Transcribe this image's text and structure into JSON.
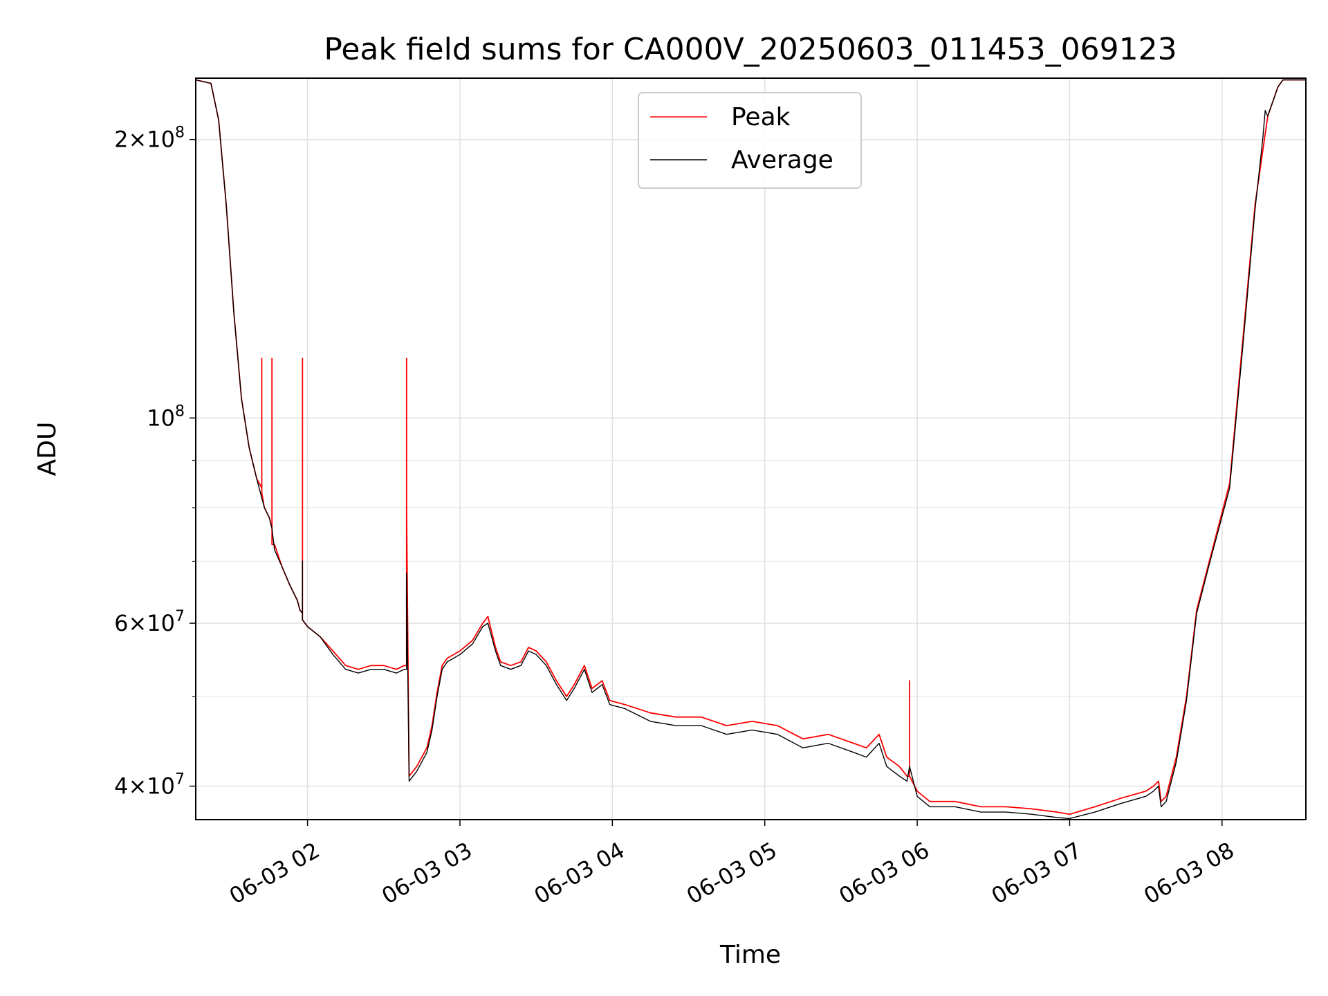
{
  "chart_data": {
    "type": "line",
    "title": "Peak field sums for CA000V_20250603_011453_069123",
    "xlabel": "Time",
    "ylabel": "ADU",
    "yscale": "log",
    "ylim": [
      36800000,
      233000000
    ],
    "xlim": [
      "06-03 01:16",
      "06-03 08:33"
    ],
    "grid": true,
    "legend_position": "upper center",
    "x_ticks": [
      "06-03 02",
      "06-03 03",
      "06-03 04",
      "06-03 05",
      "06-03 06",
      "06-03 07",
      "06-03 08"
    ],
    "x_ticks_time": [
      "02:00",
      "03:00",
      "04:00",
      "05:00",
      "06:00",
      "07:00",
      "08:00"
    ],
    "y_major_ticks": [
      {
        "value": 40000000,
        "mantissa": "4",
        "exp": "7"
      },
      {
        "value": 60000000,
        "mantissa": "6",
        "exp": "7"
      },
      {
        "value": 100000000,
        "mantissa": "",
        "exp": "8"
      },
      {
        "value": 200000000,
        "mantissa": "2",
        "exp": "8"
      }
    ],
    "y_minor_ticks": [
      50000000,
      70000000,
      80000000,
      90000000
    ],
    "series": [
      {
        "name": "Peak",
        "color": "#ff0000",
        "points": [
          [
            "01:16",
            232000000
          ],
          [
            "01:22",
            230000000
          ],
          [
            "01:25",
            210000000
          ],
          [
            "01:28",
            170000000
          ],
          [
            "01:31",
            130000000
          ],
          [
            "01:34",
            105000000
          ],
          [
            "01:37",
            93000000
          ],
          [
            "01:40",
            86000000
          ],
          [
            "01:42",
            84000000
          ],
          [
            "01:42",
            116000000
          ],
          [
            "01:42",
            83000000
          ],
          [
            "01:43",
            80000000
          ],
          [
            "01:45",
            78000000
          ],
          [
            "01:46",
            76000000
          ],
          [
            "01:46",
            116000000
          ],
          [
            "01:46",
            73000000
          ],
          [
            "01:47",
            73000000
          ],
          [
            "01:50",
            69000000
          ],
          [
            "01:53",
            66000000
          ],
          [
            "01:56",
            63500000
          ],
          [
            "01:57",
            62000000
          ],
          [
            "01:58",
            61500000
          ],
          [
            "01:58",
            116000000
          ],
          [
            "01:58",
            116000000
          ],
          [
            "01:58",
            60500000
          ],
          [
            "02:00",
            59500000
          ],
          [
            "02:05",
            58000000
          ],
          [
            "02:10",
            56000000
          ],
          [
            "02:15",
            54000000
          ],
          [
            "02:20",
            53500000
          ],
          [
            "02:25",
            54000000
          ],
          [
            "02:30",
            54000000
          ],
          [
            "02:35",
            53500000
          ],
          [
            "02:38",
            54000000
          ],
          [
            "02:39",
            54000000
          ],
          [
            "02:39",
            116000000
          ],
          [
            "02:39",
            80000000
          ],
          [
            "02:40",
            41000000
          ],
          [
            "02:43",
            42000000
          ],
          [
            "02:47",
            44000000
          ],
          [
            "02:49",
            46500000
          ],
          [
            "02:51",
            50500000
          ],
          [
            "02:53",
            54000000
          ],
          [
            "02:55",
            55000000
          ],
          [
            "03:00",
            56000000
          ],
          [
            "03:05",
            57500000
          ],
          [
            "03:09",
            60000000
          ],
          [
            "03:11",
            61000000
          ],
          [
            "03:14",
            56500000
          ],
          [
            "03:16",
            54500000
          ],
          [
            "03:20",
            54000000
          ],
          [
            "03:24",
            54500000
          ],
          [
            "03:27",
            56500000
          ],
          [
            "03:30",
            56000000
          ],
          [
            "03:34",
            54500000
          ],
          [
            "03:38",
            52000000
          ],
          [
            "03:42",
            50000000
          ],
          [
            "03:45",
            51500000
          ],
          [
            "03:49",
            54000000
          ],
          [
            "03:52",
            51000000
          ],
          [
            "03:56",
            52000000
          ],
          [
            "03:59",
            49500000
          ],
          [
            "04:05",
            49000000
          ],
          [
            "04:15",
            48000000
          ],
          [
            "04:25",
            47500000
          ],
          [
            "04:35",
            47500000
          ],
          [
            "04:45",
            46500000
          ],
          [
            "04:55",
            47000000
          ],
          [
            "05:05",
            46500000
          ],
          [
            "05:15",
            45000000
          ],
          [
            "05:25",
            45500000
          ],
          [
            "05:35",
            44500000
          ],
          [
            "05:40",
            44000000
          ],
          [
            "05:45",
            45500000
          ],
          [
            "05:48",
            43000000
          ],
          [
            "05:53",
            42000000
          ],
          [
            "05:56",
            41000000
          ],
          [
            "05:57",
            41000000
          ],
          [
            "05:57",
            52000000
          ],
          [
            "05:57",
            41000000
          ],
          [
            "06:00",
            39500000
          ],
          [
            "06:05",
            38500000
          ],
          [
            "06:15",
            38500000
          ],
          [
            "06:25",
            38000000
          ],
          [
            "06:35",
            38000000
          ],
          [
            "06:45",
            37800000
          ],
          [
            "06:55",
            37500000
          ],
          [
            "07:00",
            37300000
          ],
          [
            "07:10",
            38000000
          ],
          [
            "07:20",
            38800000
          ],
          [
            "07:30",
            39500000
          ],
          [
            "07:33",
            40000000
          ],
          [
            "07:35",
            40500000
          ],
          [
            "07:36",
            38500000
          ],
          [
            "07:38",
            39000000
          ],
          [
            "07:42",
            43000000
          ],
          [
            "07:46",
            50000000
          ],
          [
            "07:50",
            62000000
          ],
          [
            "07:55",
            70000000
          ],
          [
            "08:03",
            85000000
          ],
          [
            "08:08",
            120000000
          ],
          [
            "08:13",
            170000000
          ],
          [
            "08:18",
            212000000
          ],
          [
            "08:22",
            228000000
          ],
          [
            "08:24",
            232000000
          ],
          [
            "08:33",
            232000000
          ]
        ]
      },
      {
        "name": "Average",
        "color": "#000000",
        "points": [
          [
            "01:16",
            232000000
          ],
          [
            "01:22",
            230000000
          ],
          [
            "01:25",
            210000000
          ],
          [
            "01:28",
            170000000
          ],
          [
            "01:31",
            130000000
          ],
          [
            "01:34",
            105000000
          ],
          [
            "01:37",
            93000000
          ],
          [
            "01:40",
            86000000
          ],
          [
            "01:43",
            80000000
          ],
          [
            "01:45",
            78000000
          ],
          [
            "01:46",
            76000000
          ],
          [
            "01:47",
            72000000
          ],
          [
            "01:50",
            69000000
          ],
          [
            "01:53",
            66000000
          ],
          [
            "01:56",
            63500000
          ],
          [
            "01:57",
            62000000
          ],
          [
            "01:58",
            61500000
          ],
          [
            "01:58",
            70000000
          ],
          [
            "01:58",
            60500000
          ],
          [
            "02:00",
            59500000
          ],
          [
            "02:05",
            58000000
          ],
          [
            "02:10",
            55500000
          ],
          [
            "02:15",
            53500000
          ],
          [
            "02:20",
            53000000
          ],
          [
            "02:25",
            53500000
          ],
          [
            "02:30",
            53500000
          ],
          [
            "02:35",
            53000000
          ],
          [
            "02:38",
            53500000
          ],
          [
            "02:39",
            53500000
          ],
          [
            "02:39",
            68000000
          ],
          [
            "02:40",
            40500000
          ],
          [
            "02:43",
            41500000
          ],
          [
            "02:47",
            43500000
          ],
          [
            "02:49",
            46000000
          ],
          [
            "02:51",
            50000000
          ],
          [
            "02:53",
            53500000
          ],
          [
            "02:55",
            54500000
          ],
          [
            "03:00",
            55500000
          ],
          [
            "03:05",
            57000000
          ],
          [
            "03:09",
            59500000
          ],
          [
            "03:11",
            60000000
          ],
          [
            "03:14",
            56000000
          ],
          [
            "03:16",
            54000000
          ],
          [
            "03:20",
            53500000
          ],
          [
            "03:24",
            54000000
          ],
          [
            "03:27",
            56000000
          ],
          [
            "03:30",
            55500000
          ],
          [
            "03:34",
            54000000
          ],
          [
            "03:38",
            51500000
          ],
          [
            "03:42",
            49500000
          ],
          [
            "03:45",
            51000000
          ],
          [
            "03:49",
            53500000
          ],
          [
            "03:52",
            50500000
          ],
          [
            "03:56",
            51500000
          ],
          [
            "03:59",
            49000000
          ],
          [
            "04:05",
            48500000
          ],
          [
            "04:15",
            47000000
          ],
          [
            "04:25",
            46500000
          ],
          [
            "04:35",
            46500000
          ],
          [
            "04:45",
            45500000
          ],
          [
            "04:55",
            46000000
          ],
          [
            "05:05",
            45500000
          ],
          [
            "05:15",
            44000000
          ],
          [
            "05:25",
            44500000
          ],
          [
            "05:35",
            43500000
          ],
          [
            "05:40",
            43000000
          ],
          [
            "05:45",
            44500000
          ],
          [
            "05:48",
            42000000
          ],
          [
            "05:53",
            41000000
          ],
          [
            "05:56",
            40500000
          ],
          [
            "05:57",
            42000000
          ],
          [
            "06:00",
            39000000
          ],
          [
            "06:05",
            38000000
          ],
          [
            "06:15",
            38000000
          ],
          [
            "06:25",
            37500000
          ],
          [
            "06:35",
            37500000
          ],
          [
            "06:45",
            37300000
          ],
          [
            "06:55",
            37000000
          ],
          [
            "07:00",
            36900000
          ],
          [
            "07:10",
            37500000
          ],
          [
            "07:20",
            38300000
          ],
          [
            "07:30",
            39000000
          ],
          [
            "07:33",
            39500000
          ],
          [
            "07:35",
            40000000
          ],
          [
            "07:36",
            38000000
          ],
          [
            "07:38",
            38500000
          ],
          [
            "07:42",
            42500000
          ],
          [
            "07:46",
            49500000
          ],
          [
            "07:50",
            61500000
          ],
          [
            "07:55",
            69500000
          ],
          [
            "08:03",
            84000000
          ],
          [
            "08:08",
            118000000
          ],
          [
            "08:13",
            168000000
          ],
          [
            "08:16",
            200000000
          ],
          [
            "08:17",
            215000000
          ],
          [
            "08:18",
            212000000
          ],
          [
            "08:22",
            228000000
          ],
          [
            "08:24",
            232000000
          ],
          [
            "08:33",
            232000000
          ]
        ]
      }
    ]
  }
}
